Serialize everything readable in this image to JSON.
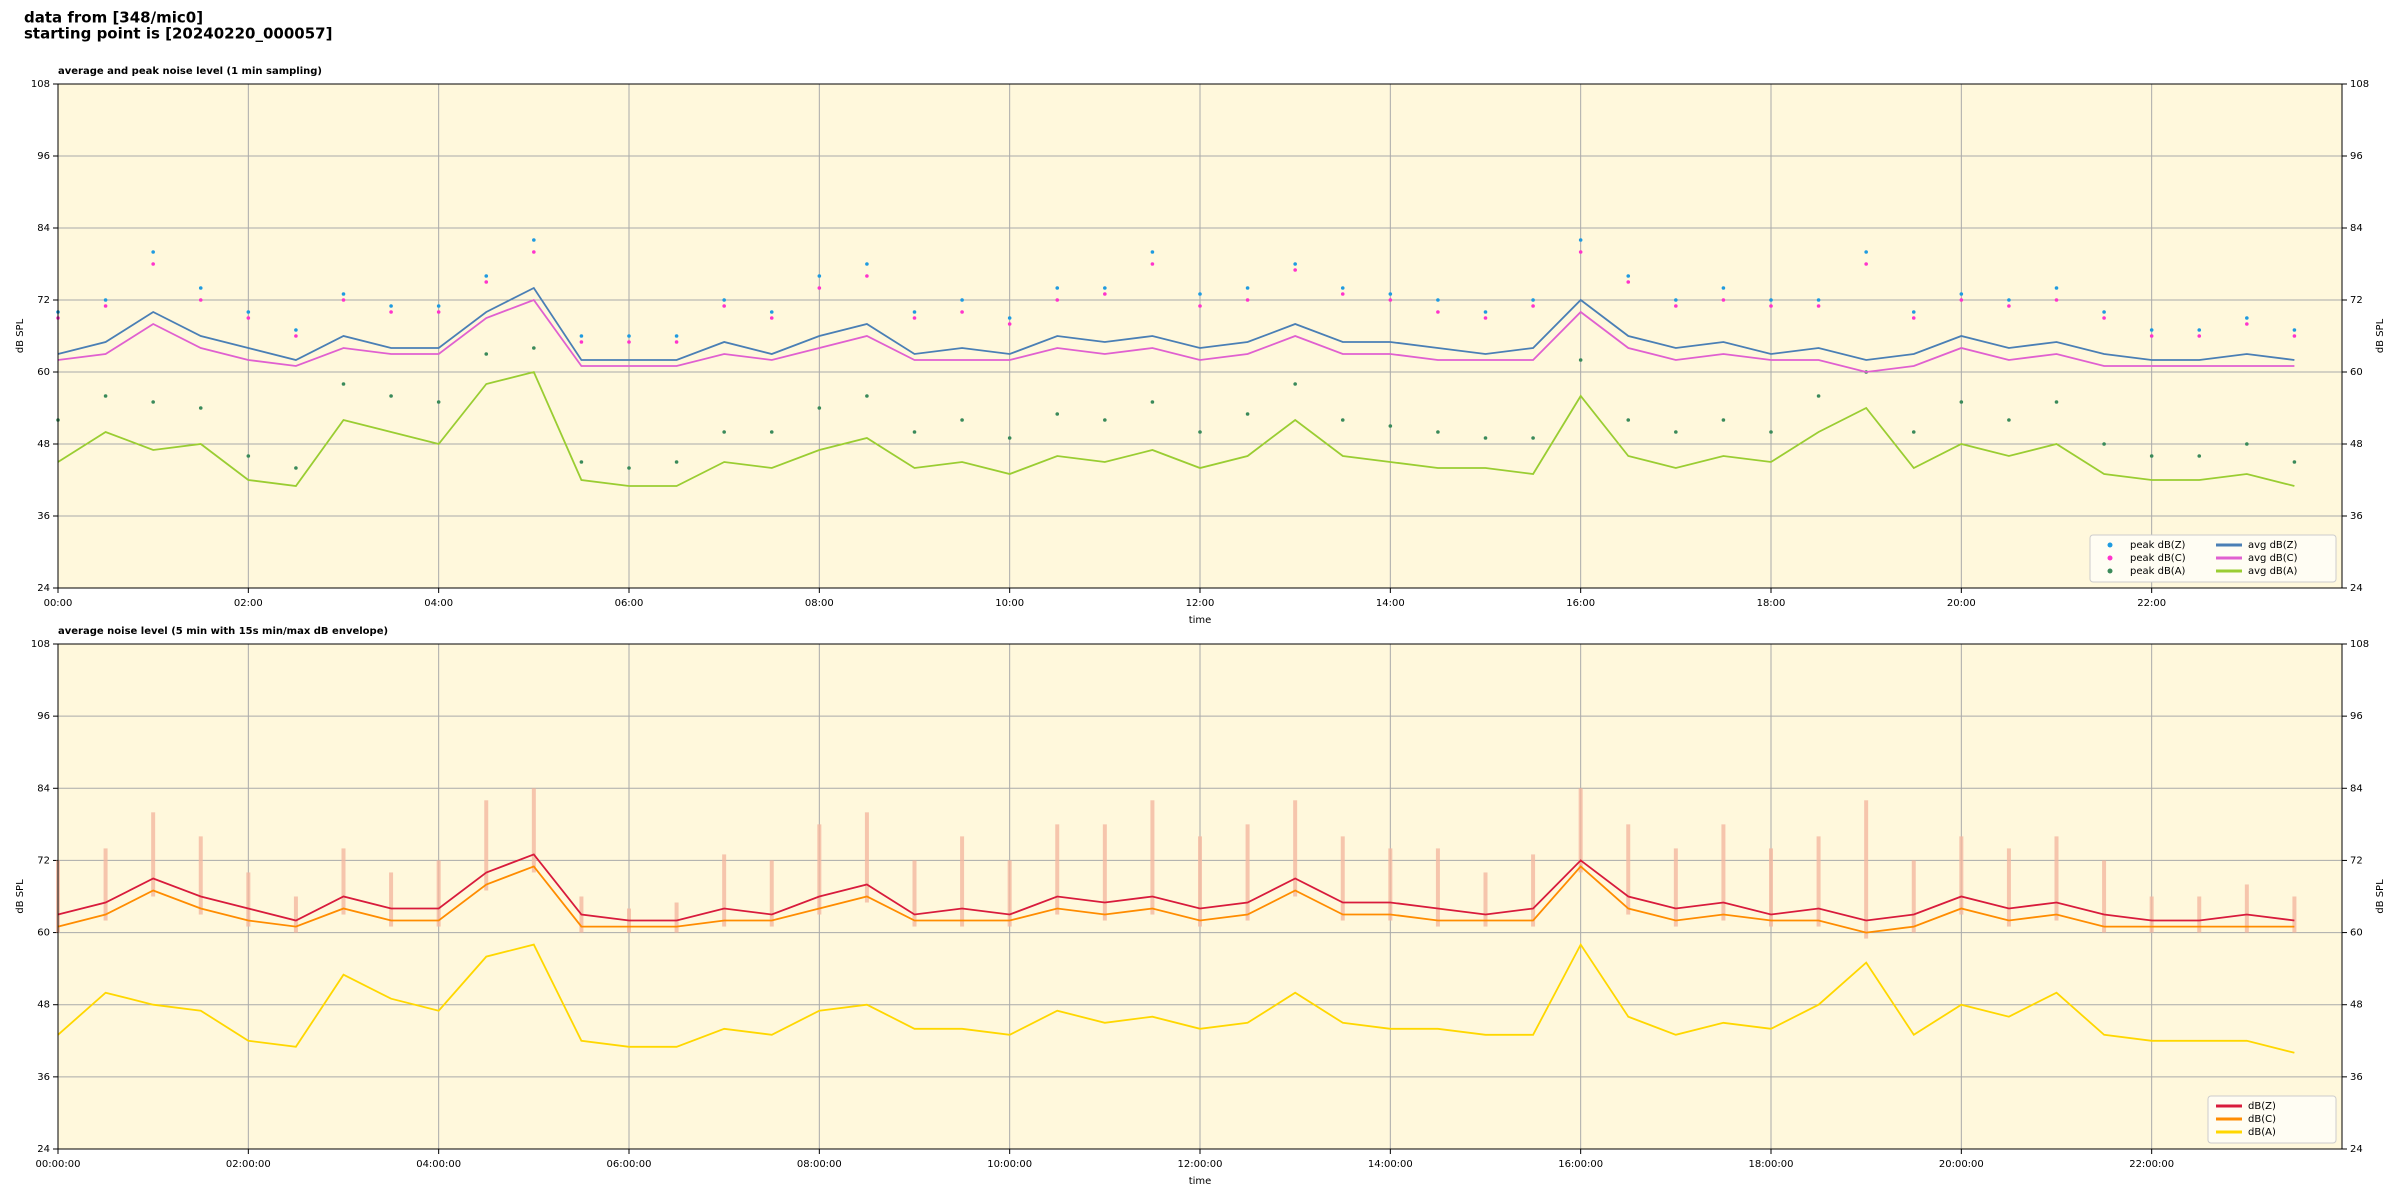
{
  "header": [
    "data from [348/mic0]",
    "starting point is [20240220_000057]"
  ],
  "chart_data": [
    {
      "type": "line",
      "title": "average and peak noise level (1 min sampling)",
      "x_label": "time",
      "y_label": "dB SPL",
      "xlim": [
        0,
        24
      ],
      "xticks": [
        {
          "value": 0,
          "label": "00:00"
        },
        {
          "value": 2,
          "label": "02:00"
        },
        {
          "value": 4,
          "label": "04:00"
        },
        {
          "value": 6,
          "label": "06:00"
        },
        {
          "value": 8,
          "label": "08:00"
        },
        {
          "value": 10,
          "label": "10:00"
        },
        {
          "value": 12,
          "label": "12:00"
        },
        {
          "value": 14,
          "label": "14:00"
        },
        {
          "value": 16,
          "label": "16:00"
        },
        {
          "value": 18,
          "label": "18:00"
        },
        {
          "value": 20,
          "label": "20:00"
        },
        {
          "value": 22,
          "label": "22:00"
        }
      ],
      "ylim": [
        24,
        108
      ],
      "yticks": [
        24,
        36,
        48,
        60,
        72,
        84,
        96,
        108
      ],
      "grid": true,
      "legend": "lower right",
      "legend_columns": 2,
      "x": [
        0,
        0.5,
        1,
        1.5,
        2,
        2.5,
        3,
        3.5,
        4,
        4.5,
        5,
        5.5,
        6,
        6.5,
        7,
        7.5,
        8,
        8.5,
        9,
        9.5,
        10,
        10.5,
        11,
        11.5,
        12,
        12.5,
        13,
        13.5,
        14,
        14.5,
        15,
        15.5,
        16,
        16.5,
        17,
        17.5,
        18,
        18.5,
        19,
        19.5,
        20,
        20.5,
        21,
        21.5,
        22,
        22.5,
        23,
        23.5
      ],
      "series": [
        {
          "name": "peak dB(Z)",
          "type": "scatter",
          "color": "#1f9be0",
          "values": [
            70,
            72,
            80,
            74,
            70,
            67,
            73,
            71,
            71,
            76,
            82,
            66,
            66,
            66,
            72,
            70,
            76,
            78,
            70,
            72,
            69,
            74,
            74,
            80,
            73,
            74,
            78,
            74,
            73,
            72,
            70,
            72,
            82,
            76,
            72,
            74,
            72,
            72,
            80,
            70,
            73,
            72,
            74,
            70,
            67,
            67,
            69,
            67
          ]
        },
        {
          "name": "peak dB(C)",
          "type": "scatter",
          "color": "#ff33cc",
          "values": [
            69,
            71,
            78,
            72,
            69,
            66,
            72,
            70,
            70,
            75,
            80,
            65,
            65,
            65,
            71,
            69,
            74,
            76,
            69,
            70,
            68,
            72,
            73,
            78,
            71,
            72,
            77,
            73,
            72,
            70,
            69,
            71,
            80,
            75,
            71,
            72,
            71,
            71,
            78,
            69,
            72,
            71,
            72,
            69,
            66,
            66,
            68,
            66
          ]
        },
        {
          "name": "peak dB(A)",
          "type": "scatter",
          "color": "#3a8a5a",
          "values": [
            52,
            56,
            55,
            54,
            46,
            44,
            58,
            56,
            55,
            63,
            64,
            45,
            44,
            45,
            50,
            50,
            54,
            56,
            50,
            52,
            49,
            53,
            52,
            55,
            50,
            53,
            58,
            52,
            51,
            50,
            49,
            49,
            62,
            52,
            50,
            52,
            50,
            56,
            60,
            50,
            55,
            52,
            55,
            48,
            46,
            46,
            48,
            45
          ]
        },
        {
          "name": "avg dB(Z)",
          "type": "line",
          "color": "#4a7fb5",
          "values": [
            63,
            65,
            70,
            66,
            64,
            62,
            66,
            64,
            64,
            70,
            74,
            62,
            62,
            62,
            65,
            63,
            66,
            68,
            63,
            64,
            63,
            66,
            65,
            66,
            64,
            65,
            68,
            65,
            65,
            64,
            63,
            64,
            72,
            66,
            64,
            65,
            63,
            64,
            62,
            63,
            66,
            64,
            65,
            63,
            62,
            62,
            63,
            62
          ]
        },
        {
          "name": "avg dB(C)",
          "type": "line",
          "color": "#e060d0",
          "values": [
            62,
            63,
            68,
            64,
            62,
            61,
            64,
            63,
            63,
            69,
            72,
            61,
            61,
            61,
            63,
            62,
            64,
            66,
            62,
            62,
            62,
            64,
            63,
            64,
            62,
            63,
            66,
            63,
            63,
            62,
            62,
            62,
            70,
            64,
            62,
            63,
            62,
            62,
            60,
            61,
            64,
            62,
            63,
            61,
            61,
            61,
            61,
            61
          ]
        },
        {
          "name": "avg dB(A)",
          "type": "line",
          "color": "#9acd32",
          "values": [
            45,
            50,
            47,
            48,
            42,
            41,
            52,
            50,
            48,
            58,
            60,
            42,
            41,
            41,
            45,
            44,
            47,
            49,
            44,
            45,
            43,
            46,
            45,
            47,
            44,
            46,
            52,
            46,
            45,
            44,
            44,
            43,
            56,
            46,
            44,
            46,
            45,
            50,
            54,
            44,
            48,
            46,
            48,
            43,
            42,
            42,
            43,
            41
          ]
        }
      ]
    },
    {
      "type": "line",
      "title": "average noise level (5 min with 15s min/max dB envelope)",
      "x_label": "time",
      "y_label": "dB SPL",
      "xlim": [
        0,
        24
      ],
      "xticks": [
        {
          "value": 0,
          "label": "00:00:00"
        },
        {
          "value": 2,
          "label": "02:00:00"
        },
        {
          "value": 4,
          "label": "04:00:00"
        },
        {
          "value": 6,
          "label": "06:00:00"
        },
        {
          "value": 8,
          "label": "08:00:00"
        },
        {
          "value": 10,
          "label": "10:00:00"
        },
        {
          "value": 12,
          "label": "12:00:00"
        },
        {
          "value": 14,
          "label": "14:00:00"
        },
        {
          "value": 16,
          "label": "16:00:00"
        },
        {
          "value": 18,
          "label": "18:00:00"
        },
        {
          "value": 20,
          "label": "20:00:00"
        },
        {
          "value": 22,
          "label": "22:00:00"
        }
      ],
      "ylim": [
        24,
        108
      ],
      "yticks": [
        24,
        36,
        48,
        60,
        72,
        84,
        96,
        108
      ],
      "grid": true,
      "legend": "lower right",
      "legend_columns": 1,
      "x": [
        0,
        0.5,
        1,
        1.5,
        2,
        2.5,
        3,
        3.5,
        4,
        4.5,
        5,
        5.5,
        6,
        6.5,
        7,
        7.5,
        8,
        8.5,
        9,
        9.5,
        10,
        10.5,
        11,
        11.5,
        12,
        12.5,
        13,
        13.5,
        14,
        14.5,
        15,
        15.5,
        16,
        16.5,
        17,
        17.5,
        18,
        18.5,
        19,
        19.5,
        20,
        20.5,
        21,
        21.5,
        22,
        22.5,
        23,
        23.5
      ],
      "series": [
        {
          "name": "dB(Z)",
          "type": "line",
          "color": "#d81b3c",
          "envelope_color": "#f4b8a0",
          "envelope_min": [
            60,
            62,
            66,
            63,
            61,
            60,
            63,
            61,
            61,
            67,
            70,
            60,
            60,
            60,
            61,
            61,
            63,
            65,
            61,
            61,
            61,
            63,
            62,
            63,
            61,
            62,
            66,
            62,
            62,
            61,
            61,
            61,
            70,
            63,
            61,
            62,
            61,
            61,
            59,
            60,
            63,
            61,
            62,
            60,
            60,
            60,
            60,
            60
          ],
          "envelope_max": [
            72,
            74,
            80,
            76,
            70,
            66,
            74,
            70,
            72,
            82,
            84,
            66,
            64,
            65,
            73,
            72,
            78,
            80,
            72,
            76,
            72,
            78,
            78,
            82,
            76,
            78,
            82,
            76,
            74,
            74,
            70,
            73,
            84,
            78,
            74,
            78,
            74,
            76,
            82,
            72,
            76,
            74,
            76,
            72,
            66,
            66,
            68,
            66
          ],
          "values": [
            63,
            65,
            69,
            66,
            64,
            62,
            66,
            64,
            64,
            70,
            73,
            63,
            62,
            62,
            64,
            63,
            66,
            68,
            63,
            64,
            63,
            66,
            65,
            66,
            64,
            65,
            69,
            65,
            65,
            64,
            63,
            64,
            72,
            66,
            64,
            65,
            63,
            64,
            62,
            63,
            66,
            64,
            65,
            63,
            62,
            62,
            63,
            62
          ]
        },
        {
          "name": "dB(C)",
          "type": "line",
          "color": "#ff8c00",
          "values": [
            61,
            63,
            67,
            64,
            62,
            61,
            64,
            62,
            62,
            68,
            71,
            61,
            61,
            61,
            62,
            62,
            64,
            66,
            62,
            62,
            62,
            64,
            63,
            64,
            62,
            63,
            67,
            63,
            63,
            62,
            62,
            62,
            71,
            64,
            62,
            63,
            62,
            62,
            60,
            61,
            64,
            62,
            63,
            61,
            61,
            61,
            61,
            61
          ]
        },
        {
          "name": "dB(A)",
          "type": "line",
          "color": "#ffd700",
          "values": [
            43,
            50,
            48,
            47,
            42,
            41,
            53,
            49,
            47,
            56,
            58,
            42,
            41,
            41,
            44,
            43,
            47,
            48,
            44,
            44,
            43,
            47,
            45,
            46,
            44,
            45,
            50,
            45,
            44,
            44,
            43,
            43,
            58,
            46,
            43,
            45,
            44,
            48,
            55,
            43,
            48,
            46,
            50,
            43,
            42,
            42,
            42,
            40
          ]
        }
      ]
    }
  ]
}
